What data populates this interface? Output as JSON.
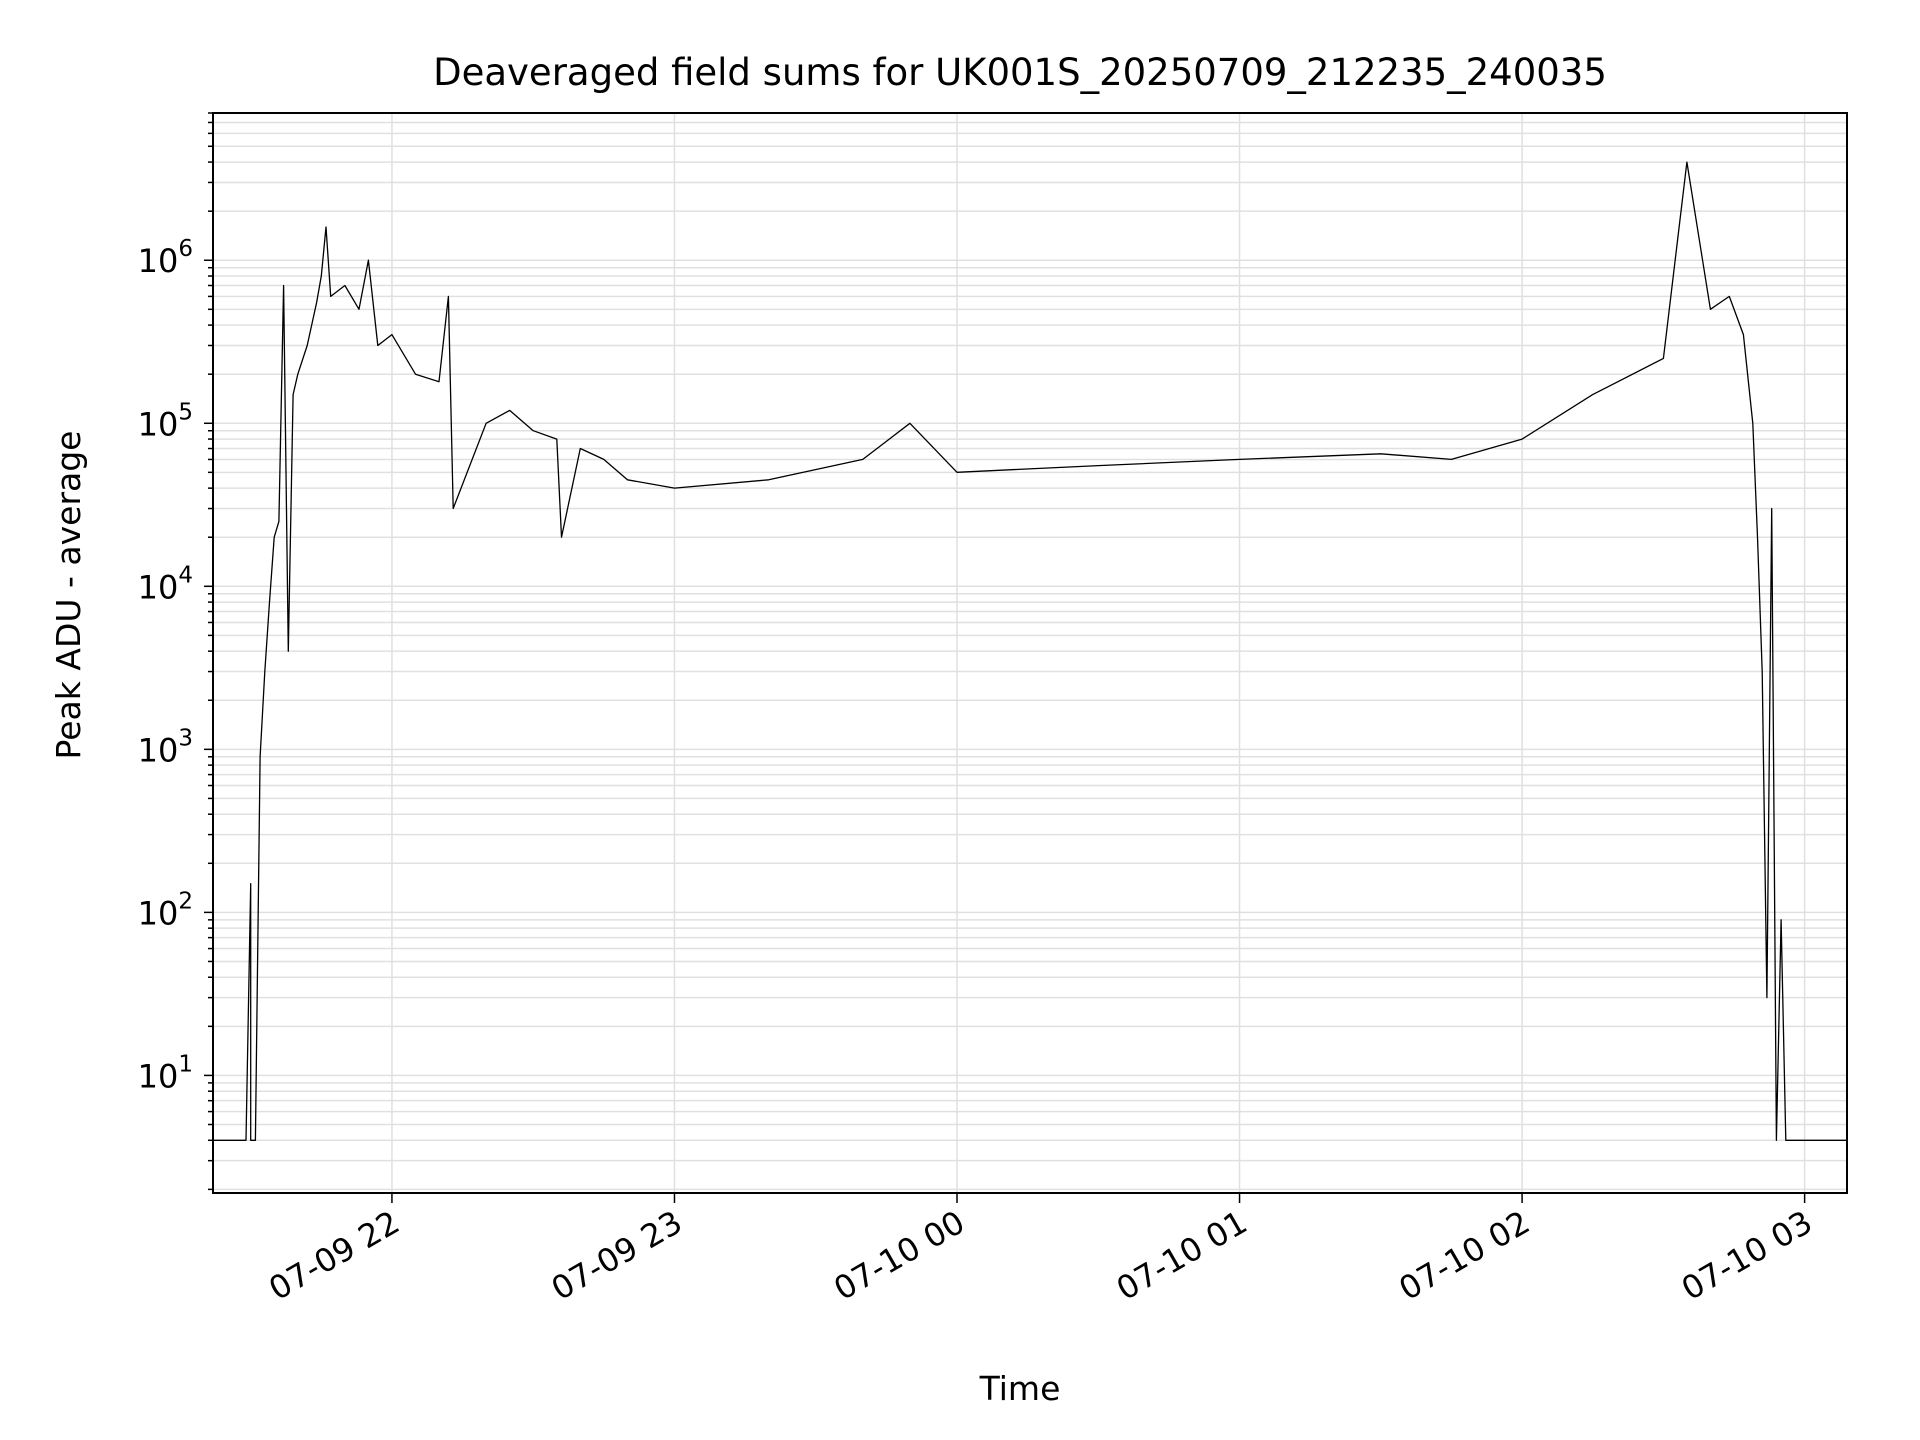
{
  "chart_data": {
    "type": "line",
    "title": "Deaveraged field sums for UK001S_20250709_212235_240035",
    "xlabel": "Time",
    "ylabel": "Peak ADU - average",
    "y_scale": "log",
    "grid": true,
    "legend": "none",
    "colors": {
      "line": "#000000",
      "grid": "#e0e0e0",
      "axes": "#000000"
    },
    "xlim": [
      "2025-07-09 21:22",
      "2025-07-10 03:09"
    ],
    "ylim": [
      1.9,
      8000000
    ],
    "x_ticks": [
      {
        "t": "2025-07-09 22:00",
        "label": "07-09 22"
      },
      {
        "t": "2025-07-09 23:00",
        "label": "07-09 23"
      },
      {
        "t": "2025-07-10 00:00",
        "label": "07-10 00"
      },
      {
        "t": "2025-07-10 01:00",
        "label": "07-10 01"
      },
      {
        "t": "2025-07-10 02:00",
        "label": "07-10 02"
      },
      {
        "t": "2025-07-10 03:00",
        "label": "07-10 03"
      }
    ],
    "y_ticks": [
      {
        "value": 10,
        "base": "10",
        "exp": "1"
      },
      {
        "value": 100,
        "base": "10",
        "exp": "2"
      },
      {
        "value": 1000,
        "base": "10",
        "exp": "3"
      },
      {
        "value": 10000,
        "base": "10",
        "exp": "4"
      },
      {
        "value": 100000,
        "base": "10",
        "exp": "5"
      },
      {
        "value": 1000000,
        "base": "10",
        "exp": "6"
      }
    ],
    "series": [
      {
        "points": [
          [
            "2025-07-09 21:22",
            4
          ],
          [
            "2025-07-09 21:29",
            4
          ],
          [
            "2025-07-09 21:30",
            150
          ],
          [
            "2025-07-09 21:30",
            4
          ],
          [
            "2025-07-09 21:31",
            4
          ],
          [
            "2025-07-09 21:32",
            900
          ],
          [
            "2025-07-09 21:33",
            3000
          ],
          [
            "2025-07-09 21:34",
            8000
          ],
          [
            "2025-07-09 21:35",
            20000
          ],
          [
            "2025-07-09 21:36",
            25000
          ],
          [
            "2025-07-09 21:37",
            700000
          ],
          [
            "2025-07-09 21:38",
            4000
          ],
          [
            "2025-07-09 21:39",
            150000
          ],
          [
            "2025-07-09 21:40",
            200000
          ],
          [
            "2025-07-09 21:42",
            300000
          ],
          [
            "2025-07-09 21:44",
            550000
          ],
          [
            "2025-07-09 21:45",
            800000
          ],
          [
            "2025-07-09 21:46",
            1600000
          ],
          [
            "2025-07-09 21:47",
            600000
          ],
          [
            "2025-07-09 21:50",
            700000
          ],
          [
            "2025-07-09 21:53",
            500000
          ],
          [
            "2025-07-09 21:55",
            1000000
          ],
          [
            "2025-07-09 21:57",
            300000
          ],
          [
            "2025-07-09 22:00",
            350000
          ],
          [
            "2025-07-09 22:05",
            200000
          ],
          [
            "2025-07-09 22:10",
            180000
          ],
          [
            "2025-07-09 22:12",
            600000
          ],
          [
            "2025-07-09 22:13",
            30000
          ],
          [
            "2025-07-09 22:20",
            100000
          ],
          [
            "2025-07-09 22:25",
            120000
          ],
          [
            "2025-07-09 22:30",
            90000
          ],
          [
            "2025-07-09 22:35",
            80000
          ],
          [
            "2025-07-09 22:36",
            20000
          ],
          [
            "2025-07-09 22:40",
            70000
          ],
          [
            "2025-07-09 22:45",
            60000
          ],
          [
            "2025-07-09 22:50",
            45000
          ],
          [
            "2025-07-09 23:00",
            40000
          ],
          [
            "2025-07-09 23:20",
            45000
          ],
          [
            "2025-07-09 23:40",
            60000
          ],
          [
            "2025-07-09 23:50",
            100000
          ],
          [
            "2025-07-10 00:00",
            50000
          ],
          [
            "2025-07-10 00:30",
            55000
          ],
          [
            "2025-07-10 01:00",
            60000
          ],
          [
            "2025-07-10 01:30",
            65000
          ],
          [
            "2025-07-10 01:45",
            60000
          ],
          [
            "2025-07-10 02:00",
            80000
          ],
          [
            "2025-07-10 02:15",
            150000
          ],
          [
            "2025-07-10 02:30",
            250000
          ],
          [
            "2025-07-10 02:35",
            4000000
          ],
          [
            "2025-07-10 02:40",
            500000
          ],
          [
            "2025-07-10 02:44",
            600000
          ],
          [
            "2025-07-10 02:47",
            350000
          ],
          [
            "2025-07-10 02:49",
            100000
          ],
          [
            "2025-07-10 02:50",
            20000
          ],
          [
            "2025-07-10 02:51",
            3000
          ],
          [
            "2025-07-10 02:52",
            30
          ],
          [
            "2025-07-10 02:53",
            30000
          ],
          [
            "2025-07-10 02:54",
            4
          ],
          [
            "2025-07-10 02:55",
            90
          ],
          [
            "2025-07-10 02:56",
            4
          ],
          [
            "2025-07-10 03:09",
            4
          ]
        ]
      }
    ]
  }
}
